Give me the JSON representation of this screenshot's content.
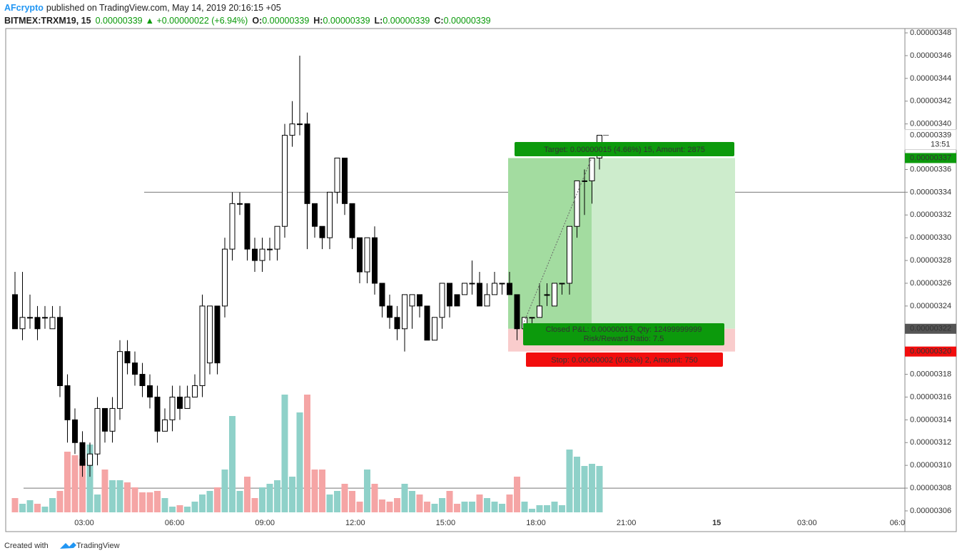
{
  "chart_data": {
    "type": "candlestick",
    "header": {
      "user": "AFcrypto",
      "published": "published on TradingView.com, May 14, 2019 20:16:15 +05",
      "symbol": "BITMEX:TRXM19, 15",
      "last": "0.00000339",
      "change": "▲ +0.00000022 (+6.94%)",
      "ohlc": [
        {
          "k": "O:",
          "v": "0.00000339"
        },
        {
          "k": "H:",
          "v": "0.00000339"
        },
        {
          "k": "L:",
          "v": "0.00000339"
        },
        {
          "k": "C:",
          "v": "0.00000339"
        }
      ]
    },
    "footer": {
      "text": "Created with",
      "brand": "TradingView"
    },
    "up_color": "#ffffff",
    "down_color": "#000000",
    "volume_up_color": "#8fd1c9",
    "volume_down_color": "#f5a5a5",
    "open": [
      3.25e-06,
      3.22e-06,
      3.23e-06,
      3.23e-06,
      3.23e-06,
      3.22e-06,
      3.23e-06,
      3.17e-06,
      3.14e-06,
      3.12e-06,
      3.1e-06,
      3.11e-06,
      3.15e-06,
      3.13e-06,
      3.15e-06,
      3.2e-06,
      3.19e-06,
      3.18e-06,
      3.17e-06,
      3.16e-06,
      3.13e-06,
      3.14e-06,
      3.16e-06,
      3.15e-06,
      3.16e-06,
      3.17e-06,
      3.19e-06,
      3.24e-06,
      3.24e-06,
      3.29e-06,
      3.33e-06,
      3.33e-06,
      3.29e-06,
      3.28e-06,
      3.29e-06,
      3.29e-06,
      3.31e-06,
      3.39e-06,
      3.4e-06,
      3.4e-06,
      3.33e-06,
      3.31e-06,
      3.3e-06,
      3.34e-06,
      3.37e-06,
      3.33e-06,
      3.3e-06,
      3.27e-06,
      3.3e-06,
      3.26e-06,
      3.24e-06,
      3.23e-06,
      3.22e-06,
      3.24e-06,
      3.25e-06,
      3.24e-06,
      3.21e-06,
      3.23e-06,
      3.26e-06,
      3.25e-06,
      3.25e-06,
      3.26e-06,
      3.26e-06,
      3.24e-06,
      3.25e-06,
      3.26e-06,
      3.26e-06,
      3.25e-06,
      3.22e-06,
      3.23e-06,
      3.23e-06,
      3.25e-06,
      3.24e-06,
      3.26e-06,
      3.26e-06,
      3.31e-06,
      3.35e-06,
      3.35e-06,
      3.37e-06
    ],
    "high": [
      3.27e-06,
      3.27e-06,
      3.25e-06,
      3.24e-06,
      3.24e-06,
      3.24e-06,
      3.24e-06,
      3.18e-06,
      3.15e-06,
      3.13e-06,
      3.12e-06,
      3.16e-06,
      3.15e-06,
      3.16e-06,
      3.21e-06,
      3.21e-06,
      3.2e-06,
      3.19e-06,
      3.18e-06,
      3.17e-06,
      3.15e-06,
      3.17e-06,
      3.17e-06,
      3.17e-06,
      3.18e-06,
      3.25e-06,
      3.24e-06,
      3.24e-06,
      3.3e-06,
      3.34e-06,
      3.34e-06,
      3.33e-06,
      3.3e-06,
      3.3e-06,
      3.3e-06,
      3.31e-06,
      3.4e-06,
      3.42e-06,
      3.46e-06,
      3.41e-06,
      3.33e-06,
      3.31e-06,
      3.34e-06,
      3.37e-06,
      3.37e-06,
      3.33e-06,
      3.3e-06,
      3.3e-06,
      3.31e-06,
      3.26e-06,
      3.25e-06,
      3.24e-06,
      3.25e-06,
      3.25e-06,
      3.25e-06,
      3.24e-06,
      3.23e-06,
      3.26e-06,
      3.26e-06,
      3.25e-06,
      3.26e-06,
      3.28e-06,
      3.27e-06,
      3.26e-06,
      3.27e-06,
      3.26e-06,
      3.27e-06,
      3.25e-06,
      3.23e-06,
      3.23e-06,
      3.26e-06,
      3.26e-06,
      3.26e-06,
      3.26e-06,
      3.31e-06,
      3.35e-06,
      3.36e-06,
      3.37e-06,
      3.39e-06
    ],
    "low": [
      3.22e-06,
      3.21e-06,
      3.22e-06,
      3.21e-06,
      3.22e-06,
      3.22e-06,
      3.16e-06,
      3.12e-06,
      3.11e-06,
      3.09e-06,
      3.09e-06,
      3.1e-06,
      3.12e-06,
      3.12e-06,
      3.14e-06,
      3.18e-06,
      3.17e-06,
      3.16e-06,
      3.15e-06,
      3.12e-06,
      3.13e-06,
      3.13e-06,
      3.14e-06,
      3.15e-06,
      3.16e-06,
      3.16e-06,
      3.18e-06,
      3.18e-06,
      3.23e-06,
      3.28e-06,
      3.32e-06,
      3.28e-06,
      3.27e-06,
      3.27e-06,
      3.28e-06,
      3.28e-06,
      3.3e-06,
      3.38e-06,
      3.39e-06,
      3.29e-06,
      3.3e-06,
      3.29e-06,
      3.29e-06,
      3.33e-06,
      3.32e-06,
      3.29e-06,
      3.26e-06,
      3.26e-06,
      3.25e-06,
      3.23e-06,
      3.22e-06,
      3.21e-06,
      3.2e-06,
      3.22e-06,
      3.23e-06,
      3.21e-06,
      3.21e-06,
      3.22e-06,
      3.23e-06,
      3.24e-06,
      3.25e-06,
      3.25e-06,
      3.24e-06,
      3.24e-06,
      3.25e-06,
      3.25e-06,
      3.25e-06,
      3.21e-06,
      3.22e-06,
      3.22e-06,
      3.23e-06,
      3.24e-06,
      3.24e-06,
      3.25e-06,
      3.25e-06,
      3.3e-06,
      3.32e-06,
      3.33e-06,
      3.36e-06
    ],
    "close": [
      3.22e-06,
      3.23e-06,
      3.23e-06,
      3.22e-06,
      3.23e-06,
      3.23e-06,
      3.17e-06,
      3.14e-06,
      3.12e-06,
      3.1e-06,
      3.11e-06,
      3.15e-06,
      3.13e-06,
      3.15e-06,
      3.2e-06,
      3.19e-06,
      3.18e-06,
      3.17e-06,
      3.16e-06,
      3.13e-06,
      3.14e-06,
      3.16e-06,
      3.15e-06,
      3.16e-06,
      3.17e-06,
      3.24e-06,
      3.24e-06,
      3.19e-06,
      3.29e-06,
      3.33e-06,
      3.33e-06,
      3.29e-06,
      3.28e-06,
      3.29e-06,
      3.29e-06,
      3.31e-06,
      3.39e-06,
      3.4e-06,
      3.4e-06,
      3.33e-06,
      3.31e-06,
      3.3e-06,
      3.34e-06,
      3.37e-06,
      3.33e-06,
      3.3e-06,
      3.27e-06,
      3.3e-06,
      3.26e-06,
      3.24e-06,
      3.23e-06,
      3.22e-06,
      3.25e-06,
      3.25e-06,
      3.24e-06,
      3.21e-06,
      3.23e-06,
      3.26e-06,
      3.24e-06,
      3.24e-06,
      3.26e-06,
      3.26e-06,
      3.24e-06,
      3.25e-06,
      3.26e-06,
      3.26e-06,
      3.25e-06,
      3.22e-06,
      3.23e-06,
      3.23e-06,
      3.24e-06,
      3.25e-06,
      3.26e-06,
      3.26e-06,
      3.31e-06,
      3.35e-06,
      3.35e-06,
      3.37e-06,
      3.39e-06
    ],
    "volume": [
      20,
      12,
      17,
      12,
      8,
      20,
      30,
      85,
      80,
      75,
      95,
      25,
      60,
      45,
      45,
      42,
      35,
      28,
      28,
      30,
      20,
      8,
      10,
      8,
      15,
      25,
      30,
      35,
      60,
      135,
      30,
      50,
      20,
      35,
      40,
      45,
      165,
      50,
      140,
      165,
      60,
      60,
      25,
      30,
      40,
      30,
      15,
      60,
      40,
      18,
      15,
      20,
      40,
      30,
      25,
      15,
      12,
      20,
      30,
      12,
      15,
      15,
      25,
      20,
      15,
      12,
      25,
      50,
      15,
      5,
      10,
      10,
      15,
      10,
      88,
      78,
      65,
      68,
      65
    ],
    "ylim": [
      3.0418e-06,
      3.4838e-06
    ],
    "yticks": [
      {
        "value": 3.06e-06,
        "label": "0.00000306"
      },
      {
        "value": 3.08e-06,
        "label": "0.00000308"
      },
      {
        "value": 3.1e-06,
        "label": "0.00000310"
      },
      {
        "value": 3.12e-06,
        "label": "0.00000312"
      },
      {
        "value": 3.14e-06,
        "label": "0.00000314"
      },
      {
        "value": 3.16e-06,
        "label": "0.00000316"
      },
      {
        "value": 3.18e-06,
        "label": "0.00000318"
      },
      {
        "value": 3.2e-06,
        "label": "0.00000320"
      },
      {
        "value": 3.22e-06,
        "label": "0.00000322"
      },
      {
        "value": 3.24e-06,
        "label": "0.00000324"
      },
      {
        "value": 3.26e-06,
        "label": "0.00000326"
      },
      {
        "value": 3.28e-06,
        "label": "0.00000328"
      },
      {
        "value": 3.3e-06,
        "label": "0.00000330"
      },
      {
        "value": 3.32e-06,
        "label": "0.00000332"
      },
      {
        "value": 3.34e-06,
        "label": "0.00000334"
      },
      {
        "value": 3.36e-06,
        "label": "0.00000336"
      },
      {
        "value": 3.38e-06,
        "label": "0.00000338"
      },
      {
        "value": 3.4e-06,
        "label": "0.00000340"
      },
      {
        "value": 3.42e-06,
        "label": "0.00000342"
      },
      {
        "value": 3.44e-06,
        "label": "0.00000344"
      },
      {
        "value": 3.46e-06,
        "label": "0.00000346"
      },
      {
        "value": 3.48e-06,
        "label": "0.00000348"
      }
    ],
    "xticks": [
      "03:00",
      "06:00",
      "09:00",
      "12:00",
      "15:00",
      "18:00",
      "21:00",
      "15",
      "03:00",
      "06:0"
    ],
    "hlines": [
      3.34e-06,
      3.08e-06
    ],
    "position": {
      "target": {
        "value": 3.37e-06,
        "label": "0.00000337",
        "color": "#0c9a0c",
        "text": "Target: 0.00000015 (4.66%) 15, Amount: 2875"
      },
      "entry": {
        "value": 3.22e-06,
        "label": "0.00000322",
        "color": "#555555",
        "text": "Closed P&L: 0.00000015, Qty: 12499999999",
        "text2": "Risk/Reward Ratio: 7.5"
      },
      "stop": {
        "value": 3.2e-06,
        "label": "0.00000320",
        "color": "#f20d0d",
        "text": "Stop: 0.00000002 (0.62%) 2, Amount: 750"
      }
    },
    "last_price": {
      "value": 3.39e-06,
      "label": "0.00000339",
      "countdown": "13:51"
    }
  }
}
